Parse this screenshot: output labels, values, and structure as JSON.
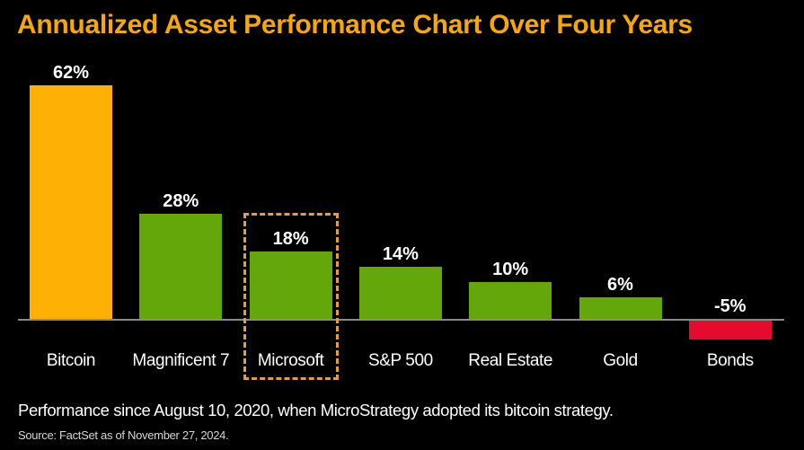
{
  "title": "Annualized Asset Performance Chart Over Four Years",
  "footer": {
    "note": "Performance since August 10, 2020, when MicroStrategy adopted its bitcoin strategy.",
    "source": "Source: FactSet as of November 27, 2024."
  },
  "colors": {
    "background": "#000000",
    "title_text": "#f7a707",
    "bitcoin_bar": "#ffb005",
    "positive_bar": "#64a70b",
    "negative_bar": "#e60a2e",
    "axis_line": "#8a8a8a",
    "highlight_box_border": "#e2a038",
    "label_text": "#ffffff"
  },
  "chart_data": {
    "type": "bar",
    "title": "Annualized Asset Performance Chart Over Four Years",
    "categories": [
      "Bitcoin",
      "Magnificent 7",
      "Microsoft",
      "S&P 500",
      "Real Estate",
      "Gold",
      "Bonds"
    ],
    "values": [
      62,
      28,
      18,
      14,
      10,
      6,
      -5
    ],
    "data_labels": [
      "62%",
      "28%",
      "18%",
      "14%",
      "10%",
      "6%",
      "-5%"
    ],
    "bar_colors": [
      "#ffb005",
      "#64a70b",
      "#64a70b",
      "#64a70b",
      "#64a70b",
      "#64a70b",
      "#e60a2e"
    ],
    "highlighted_category": "Microsoft",
    "xlabel": "",
    "ylabel": "",
    "ylim": [
      -10,
      70
    ],
    "grid": false,
    "legend": false,
    "baseline": 0
  }
}
